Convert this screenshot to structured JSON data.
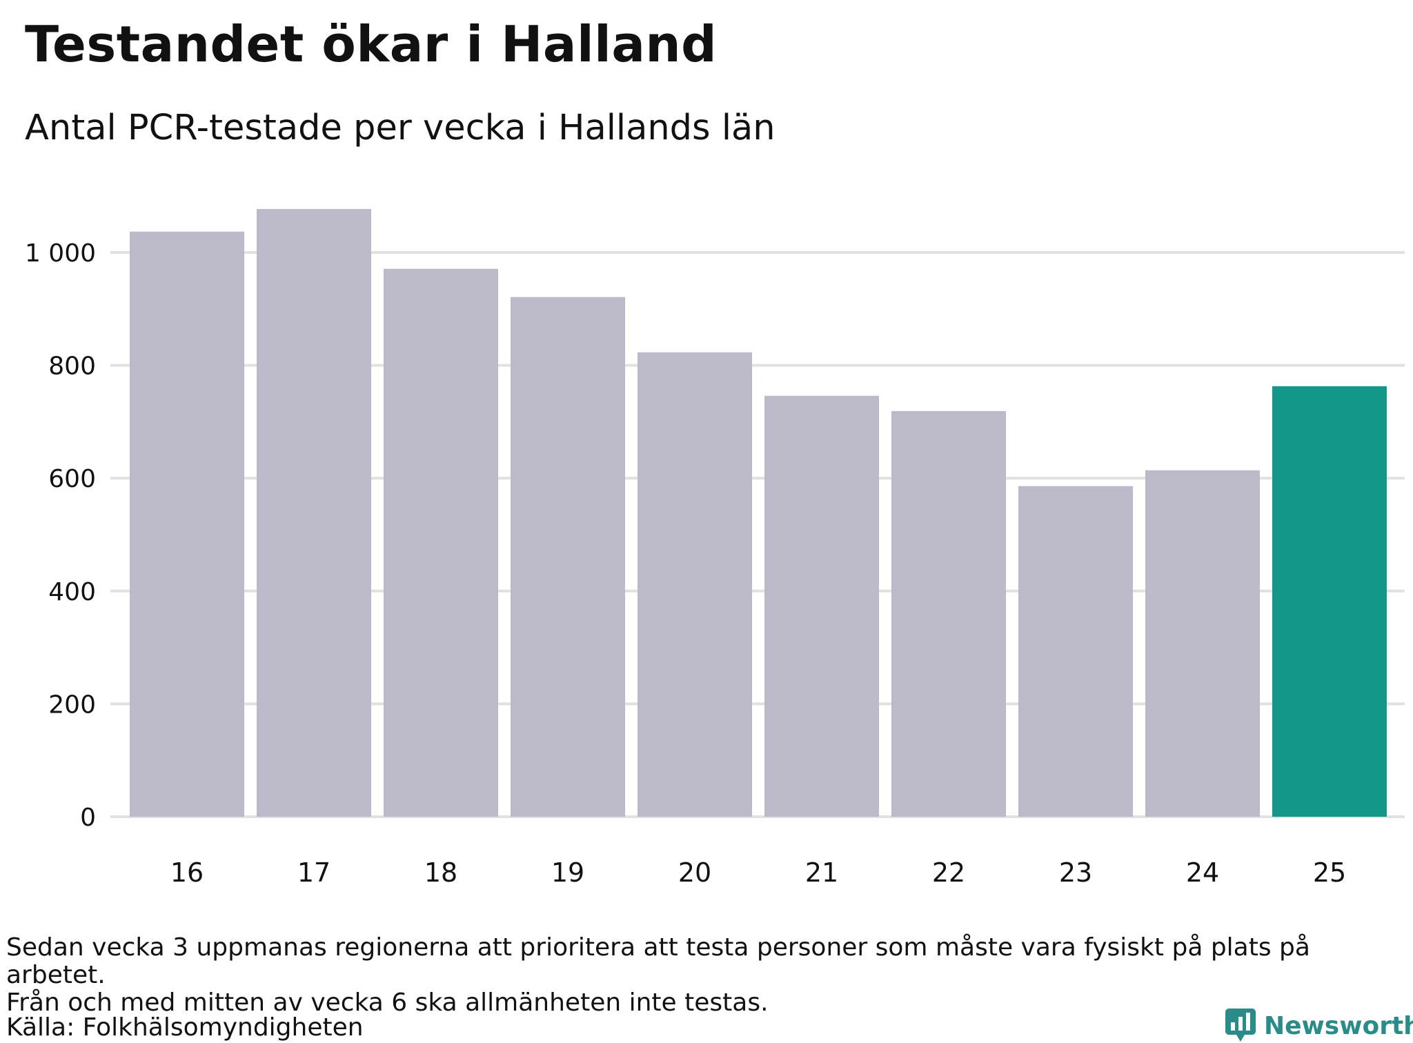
{
  "title": "Testandet ökar i Halland",
  "subtitle": "Antal PCR-testade per vecka i Hallands län",
  "footnote": {
    "line1": "Sedan vecka 3 uppmanas regionerna att prioritera att testa personer som måste vara fysiskt på plats på arbetet.",
    "line2": "Från och med mitten av vecka 6 ska allmänheten inte testas."
  },
  "source": "Källa: Folkhälsomyndigheten",
  "logo": {
    "text": "Newsworthy",
    "icon": "bar-chart-speech-bubble-icon"
  },
  "colors": {
    "bar_default": "#bcbac8",
    "bar_highlight": "#149689",
    "grid": "#e1e1e1",
    "logo": "#2a8c88"
  },
  "chart_data": {
    "type": "bar",
    "categories": [
      "16",
      "17",
      "18",
      "19",
      "20",
      "21",
      "22",
      "23",
      "24",
      "25"
    ],
    "values": [
      1037,
      1077,
      971,
      921,
      823,
      746,
      719,
      586,
      614,
      763
    ],
    "highlight_index": 9,
    "title": "Testandet ökar i Halland",
    "subtitle": "Antal PCR-testade per vecka i Hallands län",
    "xlabel": "",
    "ylabel": "",
    "ylim": [
      0,
      1080
    ],
    "yticks": [
      0,
      200,
      400,
      600,
      800,
      1000
    ],
    "ytick_labels": [
      "0",
      "200",
      "400",
      "600",
      "800",
      "1 000"
    ],
    "grid": true,
    "legend": "none"
  }
}
